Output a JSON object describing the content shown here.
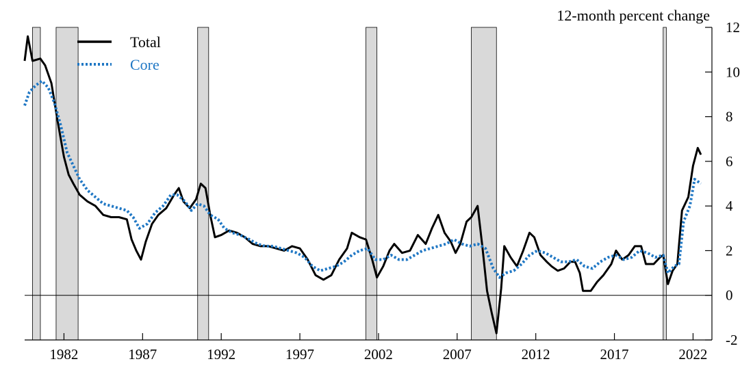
{
  "chart_data": {
    "type": "line",
    "ylabel": "12-month percent change",
    "ylim": [
      -2,
      12
    ],
    "yticks": [
      "-2",
      "0",
      "2",
      "4",
      "6",
      "8",
      "10",
      "12"
    ],
    "xlim": [
      1979.5,
      2023.2
    ],
    "xticks": [
      {
        "year": 1982,
        "label": "1982"
      },
      {
        "year": 1987,
        "label": "1987"
      },
      {
        "year": 1992,
        "label": "1992"
      },
      {
        "year": 1997,
        "label": "1997"
      },
      {
        "year": 2002,
        "label": "2002"
      },
      {
        "year": 2007,
        "label": "2007"
      },
      {
        "year": 2012,
        "label": "2012"
      },
      {
        "year": 2017,
        "label": "2017"
      },
      {
        "year": 2022,
        "label": "2022"
      }
    ],
    "recessions": [
      [
        1980.0,
        1980.5
      ],
      [
        1981.5,
        1982.9
      ],
      [
        1990.5,
        1991.2
      ],
      [
        2001.2,
        2001.9
      ],
      [
        2007.9,
        2009.5
      ],
      [
        2020.1,
        2020.3
      ]
    ],
    "legend_position": "top-left",
    "series": [
      {
        "name": "Total",
        "color": "#000000",
        "style": "solid",
        "points": [
          [
            1979.5,
            10.5
          ],
          [
            1979.7,
            11.6
          ],
          [
            1980.0,
            10.5
          ],
          [
            1980.5,
            10.6
          ],
          [
            1980.8,
            10.3
          ],
          [
            1981.2,
            9.5
          ],
          [
            1981.6,
            7.8
          ],
          [
            1982.0,
            6.2
          ],
          [
            1982.3,
            5.4
          ],
          [
            1982.6,
            5.0
          ],
          [
            1983.0,
            4.5
          ],
          [
            1983.5,
            4.2
          ],
          [
            1984.0,
            4.0
          ],
          [
            1984.5,
            3.6
          ],
          [
            1985.0,
            3.5
          ],
          [
            1985.5,
            3.5
          ],
          [
            1986.0,
            3.4
          ],
          [
            1986.3,
            2.5
          ],
          [
            1986.6,
            2.0
          ],
          [
            1986.9,
            1.6
          ],
          [
            1987.2,
            2.4
          ],
          [
            1987.6,
            3.2
          ],
          [
            1988.0,
            3.6
          ],
          [
            1988.5,
            3.9
          ],
          [
            1989.0,
            4.5
          ],
          [
            1989.3,
            4.8
          ],
          [
            1989.6,
            4.2
          ],
          [
            1990.0,
            3.9
          ],
          [
            1990.4,
            4.3
          ],
          [
            1990.7,
            5.0
          ],
          [
            1991.0,
            4.8
          ],
          [
            1991.3,
            3.6
          ],
          [
            1991.6,
            2.6
          ],
          [
            1992.0,
            2.7
          ],
          [
            1992.5,
            2.9
          ],
          [
            1993.0,
            2.8
          ],
          [
            1993.5,
            2.6
          ],
          [
            1994.0,
            2.3
          ],
          [
            1994.5,
            2.2
          ],
          [
            1995.0,
            2.2
          ],
          [
            1995.5,
            2.1
          ],
          [
            1996.0,
            2.0
          ],
          [
            1996.5,
            2.2
          ],
          [
            1997.0,
            2.1
          ],
          [
            1997.5,
            1.6
          ],
          [
            1998.0,
            0.9
          ],
          [
            1998.5,
            0.7
          ],
          [
            1999.0,
            0.9
          ],
          [
            1999.5,
            1.6
          ],
          [
            2000.0,
            2.1
          ],
          [
            2000.3,
            2.8
          ],
          [
            2000.8,
            2.6
          ],
          [
            2001.2,
            2.5
          ],
          [
            2001.6,
            1.6
          ],
          [
            2001.9,
            0.8
          ],
          [
            2002.3,
            1.3
          ],
          [
            2002.7,
            2.0
          ],
          [
            2003.0,
            2.3
          ],
          [
            2003.5,
            1.9
          ],
          [
            2004.0,
            2.0
          ],
          [
            2004.5,
            2.7
          ],
          [
            2005.0,
            2.3
          ],
          [
            2005.4,
            3.0
          ],
          [
            2005.8,
            3.6
          ],
          [
            2006.2,
            2.8
          ],
          [
            2006.6,
            2.4
          ],
          [
            2006.9,
            1.9
          ],
          [
            2007.2,
            2.3
          ],
          [
            2007.6,
            3.3
          ],
          [
            2007.9,
            3.5
          ],
          [
            2008.3,
            4.0
          ],
          [
            2008.6,
            2.2
          ],
          [
            2008.9,
            0.2
          ],
          [
            2009.2,
            -0.8
          ],
          [
            2009.5,
            -1.7
          ],
          [
            2009.8,
            0.3
          ],
          [
            2010.0,
            2.2
          ],
          [
            2010.4,
            1.7
          ],
          [
            2010.8,
            1.3
          ],
          [
            2011.2,
            2.0
          ],
          [
            2011.6,
            2.8
          ],
          [
            2011.9,
            2.6
          ],
          [
            2012.3,
            1.8
          ],
          [
            2012.7,
            1.5
          ],
          [
            2013.0,
            1.3
          ],
          [
            2013.4,
            1.1
          ],
          [
            2013.8,
            1.2
          ],
          [
            2014.2,
            1.5
          ],
          [
            2014.5,
            1.5
          ],
          [
            2014.8,
            1.0
          ],
          [
            2015.0,
            0.2
          ],
          [
            2015.5,
            0.2
          ],
          [
            2015.9,
            0.6
          ],
          [
            2016.3,
            0.9
          ],
          [
            2016.8,
            1.4
          ],
          [
            2017.1,
            2.0
          ],
          [
            2017.5,
            1.6
          ],
          [
            2017.9,
            1.8
          ],
          [
            2018.3,
            2.2
          ],
          [
            2018.7,
            2.2
          ],
          [
            2019.0,
            1.4
          ],
          [
            2019.5,
            1.4
          ],
          [
            2019.9,
            1.7
          ],
          [
            2020.1,
            1.8
          ],
          [
            2020.4,
            0.5
          ],
          [
            2020.7,
            1.1
          ],
          [
            2021.0,
            1.4
          ],
          [
            2021.3,
            3.8
          ],
          [
            2021.7,
            4.4
          ],
          [
            2022.0,
            5.8
          ],
          [
            2022.3,
            6.6
          ],
          [
            2022.5,
            6.3
          ]
        ]
      },
      {
        "name": "Core",
        "color": "#1f77c4",
        "style": "dotted",
        "points": [
          [
            1979.5,
            8.5
          ],
          [
            1979.8,
            9.1
          ],
          [
            1980.2,
            9.4
          ],
          [
            1980.6,
            9.6
          ],
          [
            1981.0,
            9.3
          ],
          [
            1981.4,
            8.6
          ],
          [
            1981.8,
            7.6
          ],
          [
            1982.2,
            6.4
          ],
          [
            1982.6,
            5.8
          ],
          [
            1983.0,
            5.2
          ],
          [
            1983.5,
            4.7
          ],
          [
            1984.0,
            4.4
          ],
          [
            1984.5,
            4.1
          ],
          [
            1985.0,
            4.0
          ],
          [
            1985.5,
            3.9
          ],
          [
            1986.0,
            3.8
          ],
          [
            1986.4,
            3.5
          ],
          [
            1986.8,
            3.0
          ],
          [
            1987.3,
            3.2
          ],
          [
            1987.8,
            3.7
          ],
          [
            1988.3,
            4.0
          ],
          [
            1988.8,
            4.5
          ],
          [
            1989.2,
            4.5
          ],
          [
            1989.7,
            4.2
          ],
          [
            1990.1,
            3.8
          ],
          [
            1990.5,
            4.1
          ],
          [
            1990.9,
            4.0
          ],
          [
            1991.3,
            3.6
          ],
          [
            1991.8,
            3.4
          ],
          [
            1992.2,
            3.0
          ],
          [
            1992.7,
            2.8
          ],
          [
            1993.2,
            2.7
          ],
          [
            1993.8,
            2.5
          ],
          [
            1994.3,
            2.3
          ],
          [
            1994.8,
            2.2
          ],
          [
            1995.3,
            2.2
          ],
          [
            1995.8,
            2.1
          ],
          [
            1996.3,
            2.0
          ],
          [
            1996.8,
            1.9
          ],
          [
            1997.3,
            1.7
          ],
          [
            1997.8,
            1.3
          ],
          [
            1998.3,
            1.1
          ],
          [
            1998.8,
            1.2
          ],
          [
            1999.3,
            1.3
          ],
          [
            1999.8,
            1.5
          ],
          [
            2000.3,
            1.8
          ],
          [
            2000.8,
            2.0
          ],
          [
            2001.3,
            2.1
          ],
          [
            2001.8,
            1.6
          ],
          [
            2002.3,
            1.6
          ],
          [
            2002.8,
            1.8
          ],
          [
            2003.3,
            1.6
          ],
          [
            2003.8,
            1.6
          ],
          [
            2004.3,
            1.8
          ],
          [
            2004.8,
            2.0
          ],
          [
            2005.3,
            2.1
          ],
          [
            2005.8,
            2.2
          ],
          [
            2006.3,
            2.3
          ],
          [
            2006.8,
            2.5
          ],
          [
            2007.3,
            2.3
          ],
          [
            2007.8,
            2.2
          ],
          [
            2008.3,
            2.3
          ],
          [
            2008.8,
            2.1
          ],
          [
            2009.3,
            1.2
          ],
          [
            2009.7,
            0.8
          ],
          [
            2010.1,
            1.0
          ],
          [
            2010.6,
            1.1
          ],
          [
            2011.1,
            1.4
          ],
          [
            2011.6,
            1.8
          ],
          [
            2012.1,
            2.0
          ],
          [
            2012.6,
            1.9
          ],
          [
            2013.1,
            1.7
          ],
          [
            2013.6,
            1.5
          ],
          [
            2014.1,
            1.5
          ],
          [
            2014.6,
            1.6
          ],
          [
            2015.1,
            1.3
          ],
          [
            2015.6,
            1.2
          ],
          [
            2016.1,
            1.5
          ],
          [
            2016.6,
            1.7
          ],
          [
            2017.1,
            1.8
          ],
          [
            2017.6,
            1.6
          ],
          [
            2018.1,
            1.7
          ],
          [
            2018.6,
            2.0
          ],
          [
            2019.1,
            1.9
          ],
          [
            2019.6,
            1.7
          ],
          [
            2020.1,
            1.8
          ],
          [
            2020.4,
            1.0
          ],
          [
            2020.8,
            1.3
          ],
          [
            2021.1,
            1.4
          ],
          [
            2021.4,
            3.3
          ],
          [
            2021.8,
            4.0
          ],
          [
            2022.1,
            5.2
          ],
          [
            2022.5,
            5.0
          ]
        ]
      }
    ]
  }
}
